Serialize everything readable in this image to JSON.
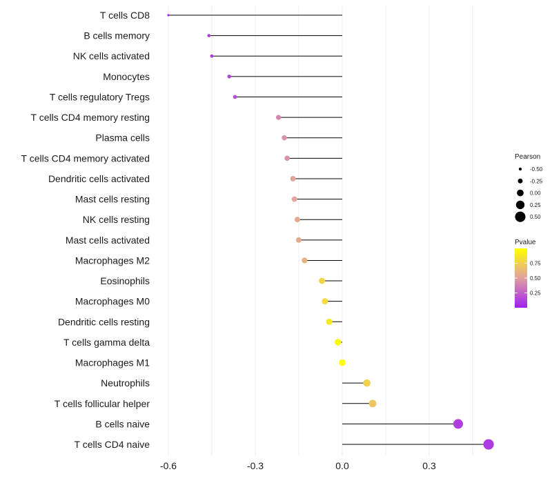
{
  "chart_data": {
    "type": "lollipop",
    "title": "",
    "xlabel": "",
    "ylabel": "",
    "xlim": [
      -0.62,
      0.52
    ],
    "xticks": [
      -0.6,
      -0.3,
      0.0,
      0.3
    ],
    "xtick_labels": [
      "-0.6",
      "-0.3",
      "0.0",
      "0.3"
    ],
    "grid": "vertical",
    "categories": [
      "T cells CD8",
      "B cells memory",
      "NK cells activated",
      "Monocytes",
      "T cells regulatory  Tregs ",
      "T cells CD4 memory resting",
      "Plasma cells",
      "T cells CD4 memory activated",
      "Dendritic cells activated",
      "Mast cells resting",
      "NK cells resting",
      "Mast cells activated",
      "Macrophages M2",
      "Eosinophils",
      "Macrophages M0",
      "Dendritic cells resting",
      "T cells gamma delta",
      "Macrophages M1",
      "Neutrophils",
      "T cells follicular helper",
      "B cells naive",
      "T cells CD4 naive"
    ],
    "values": [
      -0.6,
      -0.46,
      -0.45,
      -0.39,
      -0.37,
      -0.22,
      -0.2,
      -0.19,
      -0.17,
      -0.165,
      -0.155,
      -0.15,
      -0.13,
      -0.07,
      -0.06,
      -0.045,
      -0.015,
      0.0,
      0.085,
      0.105,
      0.4,
      0.505
    ],
    "pvalues": [
      0.02,
      0.1,
      0.1,
      0.15,
      0.17,
      0.4,
      0.45,
      0.45,
      0.52,
      0.52,
      0.55,
      0.56,
      0.6,
      0.78,
      0.82,
      0.88,
      0.95,
      0.99,
      0.76,
      0.7,
      0.12,
      0.1
    ],
    "legend": {
      "size_title": "Pearson",
      "size_values": [
        "-0.50",
        "-0.25",
        "0.00",
        "0.25",
        "0.50"
      ],
      "color_title": "Pvalue",
      "color_ticks": [
        "0.75",
        "0.50",
        "0.25"
      ],
      "color_tick_values": [
        0.75,
        0.5,
        0.25
      ],
      "color_range": [
        0.0,
        1.0
      ],
      "colors": {
        "low": "#a020f0",
        "mid": "#e0a0a0",
        "high": "#ffff00"
      }
    }
  }
}
